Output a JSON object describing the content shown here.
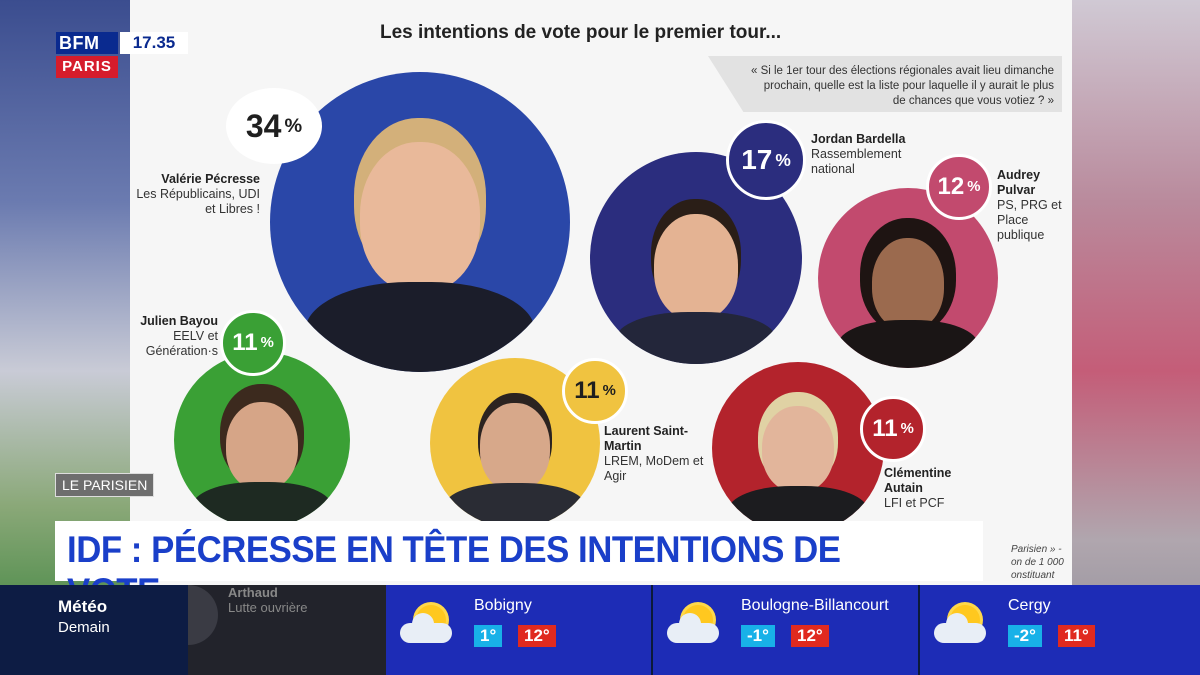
{
  "channel": {
    "logo_top": "BFM",
    "logo_bottom": "PARIS",
    "time": "17.35"
  },
  "infographic": {
    "title": "Les intentions de vote pour le premier tour...",
    "question": "« Si le 1er tour des élections régionales avait lieu dimanche prochain, quelle est la liste pour laquelle il y aurait le plus de chances que vous votiez ? »",
    "candidates": [
      {
        "percent": "34",
        "name": "Valérie Pécresse",
        "party": "Les Républicains, UDI et Libres !",
        "color": "#2a47a8"
      },
      {
        "percent": "17",
        "name": "Jordan Bardella",
        "party": "Rassemblement national",
        "color": "#2b2d7e"
      },
      {
        "percent": "12",
        "name": "Audrey Pulvar",
        "party": "PS, PRG et Place publique",
        "color": "#c24a6e"
      },
      {
        "percent": "11",
        "name": "Julien Bayou",
        "party": "EELV et Génération·s",
        "color": "#3aa035"
      },
      {
        "percent": "11",
        "name": "Laurent Saint-Martin",
        "party": "LREM, MoDem et Agir",
        "color": "#f0c340"
      },
      {
        "percent": "11",
        "name": "Clémentine Autain",
        "party": "LFI et PCF",
        "color": "#b3232c"
      }
    ],
    "percent_sign": "%",
    "footnote": "Parisien » - on de 1 000 onstituant"
  },
  "source_label": "LE PARISIEN",
  "headline": "IDF : PÉCRESSE EN TÊTE DES INTENTIONS DE VOTE",
  "ticker": {
    "meteo_title": "Météo",
    "meteo_sub": "Demain",
    "partial_candidate": {
      "name": "Arthaud",
      "party": "Lutte ouvrière"
    },
    "cities": [
      {
        "name": "Bobigny",
        "min": "1°",
        "max": "12°",
        "icon": "sun-cloud-icon"
      },
      {
        "name": "Boulogne-Billancourt",
        "min": "-1°",
        "max": "12°",
        "icon": "sun-cloud-icon"
      },
      {
        "name": "Cergy",
        "min": "-2°",
        "max": "11°",
        "icon": "sun-cloud-icon"
      }
    ]
  }
}
